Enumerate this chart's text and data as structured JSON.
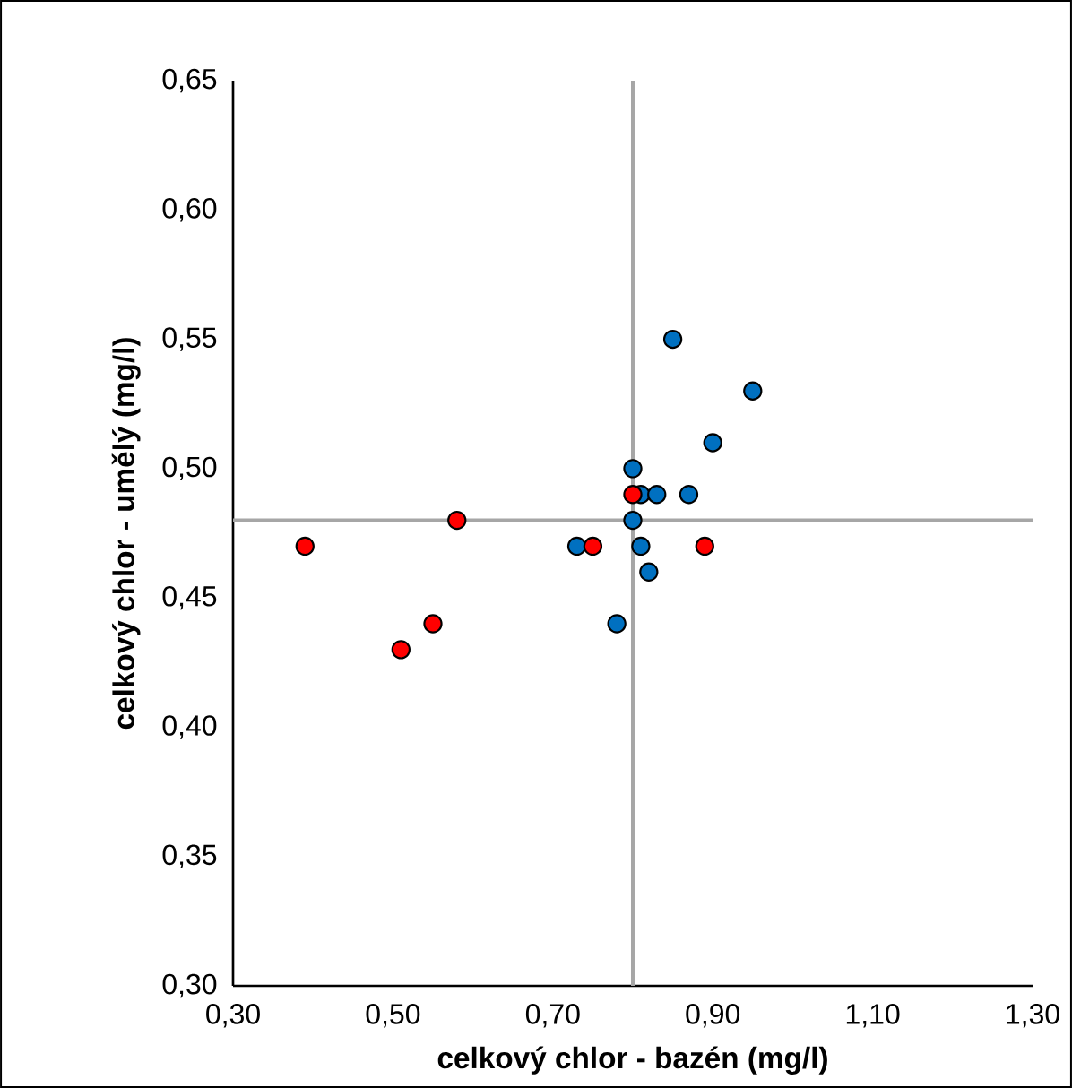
{
  "chart_data": {
    "type": "scatter",
    "xlabel": "celkový chlor - bazén (mg/l)",
    "ylabel": "celkový chlor - umělý (mg/l)",
    "series": [
      {
        "color": "#0070c0",
        "x": [
          0.85,
          0.95,
          0.9,
          0.8,
          0.81,
          0.83,
          0.87,
          0.8,
          0.73,
          0.81,
          0.82,
          0.78
        ],
        "values": [
          0.55,
          0.53,
          0.51,
          0.5,
          0.49,
          0.49,
          0.49,
          0.48,
          0.47,
          0.47,
          0.46,
          0.44
        ]
      },
      {
        "color": "#ff0000",
        "x": [
          0.8,
          0.75,
          0.89,
          0.39,
          0.58,
          0.51,
          0.55
        ],
        "values": [
          0.49,
          0.47,
          0.47,
          0.47,
          0.48,
          0.43,
          0.44
        ]
      }
    ],
    "marker": "circle",
    "xlim": [
      0.3,
      1.3
    ],
    "xticks": [
      {
        "value": 0.3,
        "label": "0,30"
      },
      {
        "value": 0.5,
        "label": "0,50"
      },
      {
        "value": 0.7,
        "label": "0,70"
      },
      {
        "value": 0.9,
        "label": "0,90"
      },
      {
        "value": 1.1,
        "label": "1,10"
      },
      {
        "value": 1.3,
        "label": "1,30"
      }
    ],
    "ylim": [
      0.3,
      0.65
    ],
    "yticks": [
      {
        "value": 0.3,
        "label": "0,30"
      },
      {
        "value": 0.35,
        "label": "0,35"
      },
      {
        "value": 0.4,
        "label": "0,40"
      },
      {
        "value": 0.45,
        "label": "0,45"
      },
      {
        "value": 0.5,
        "label": "0,50"
      },
      {
        "value": 0.55,
        "label": "0,55"
      },
      {
        "value": 0.6,
        "label": "0,60"
      },
      {
        "value": 0.65,
        "label": "0,65"
      }
    ],
    "ref_lines": [
      {
        "axis": "x",
        "value": 0.8,
        "color": "#a6a6a6"
      },
      {
        "axis": "y",
        "value": 0.48,
        "color": "#a6a6a6"
      }
    ]
  }
}
